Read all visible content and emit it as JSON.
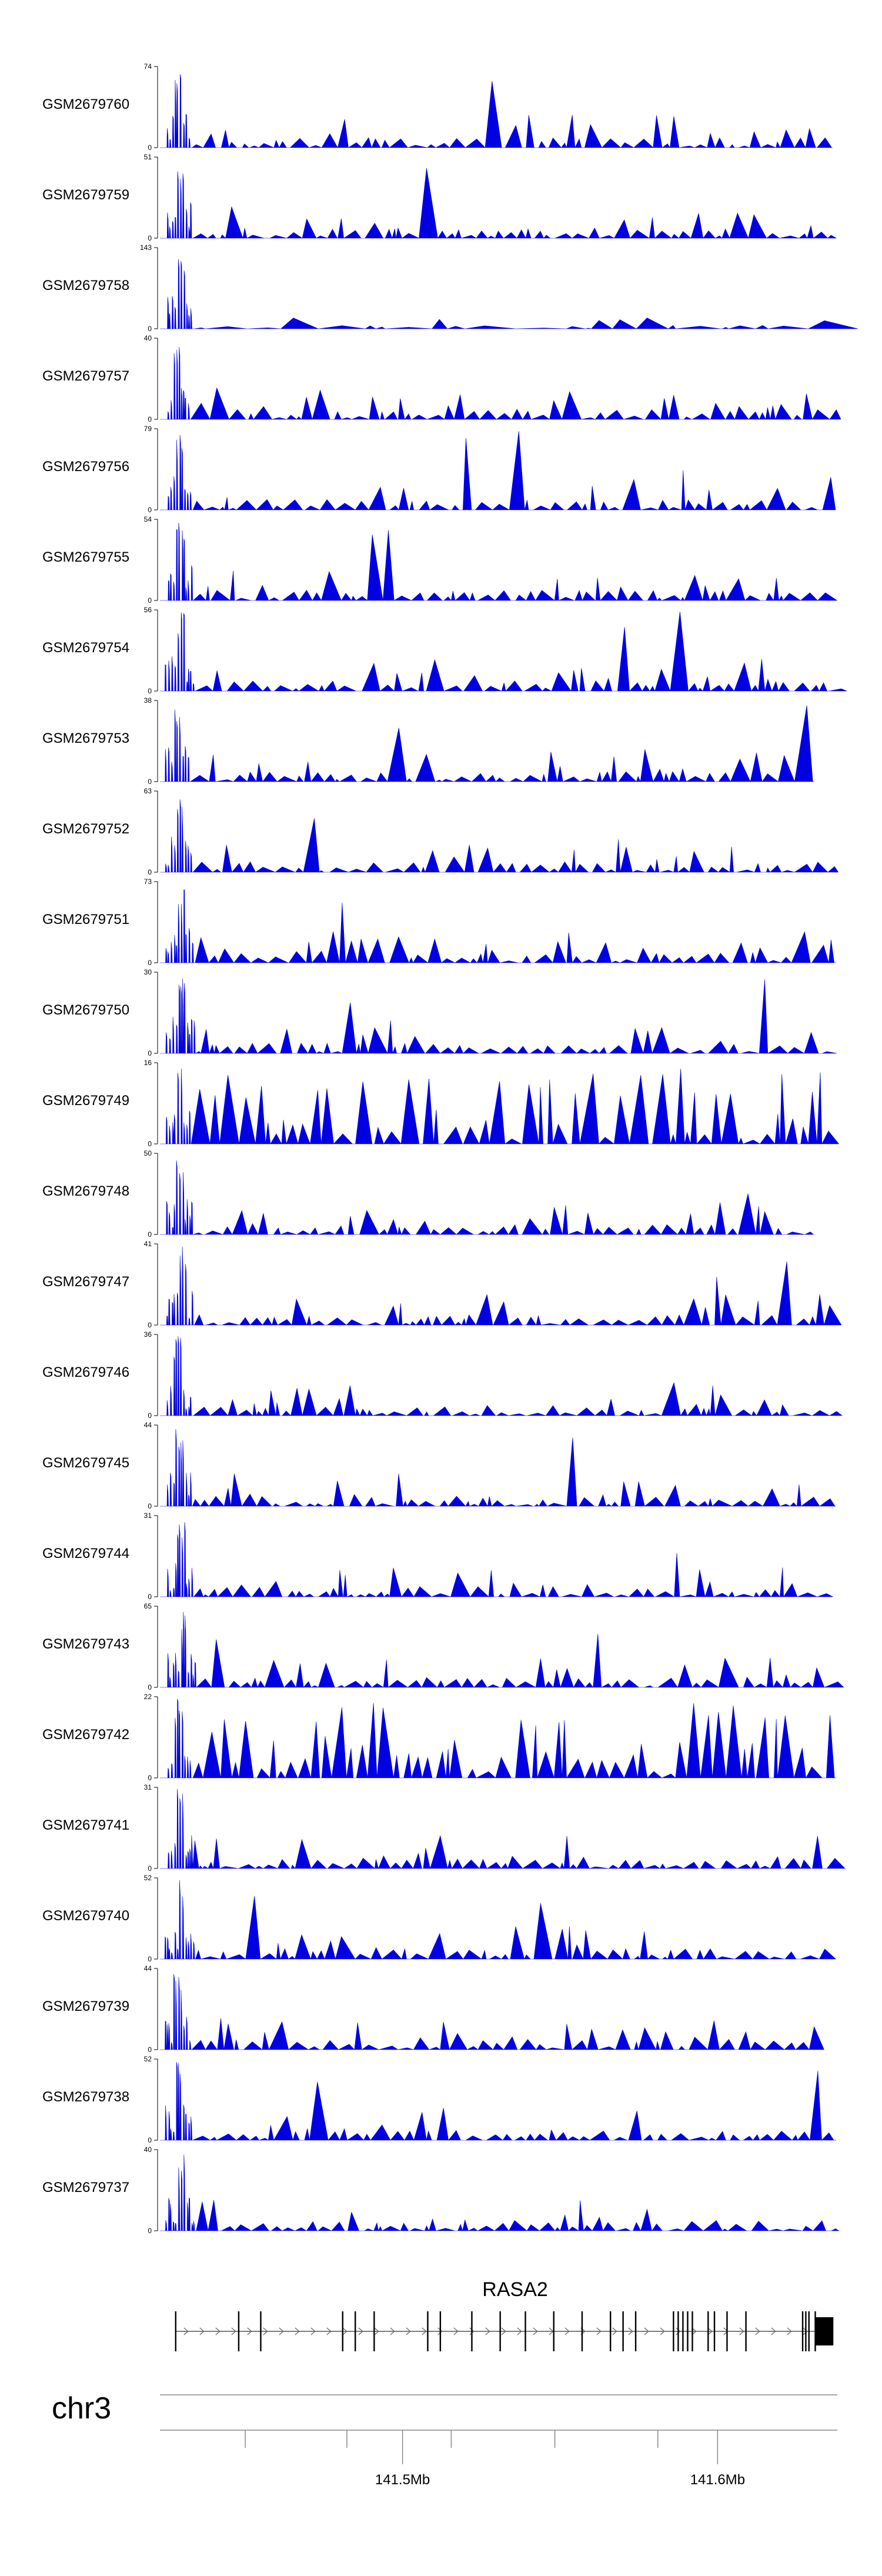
{
  "chart_data": {
    "type": "area",
    "title": "",
    "fill_color": "#0000e0",
    "x_range": [
      141.423,
      141.638
    ],
    "x_units": "Mb",
    "tracks": [
      {
        "name": "GSM2679760",
        "ymax": 74,
        "ymin": 0
      },
      {
        "name": "GSM2679759",
        "ymax": 51,
        "ymin": 0
      },
      {
        "name": "GSM2679758",
        "ymax": 143,
        "ymin": 0
      },
      {
        "name": "GSM2679757",
        "ymax": 40,
        "ymin": 0
      },
      {
        "name": "GSM2679756",
        "ymax": 79,
        "ymin": 0
      },
      {
        "name": "GSM2679755",
        "ymax": 54,
        "ymin": 0
      },
      {
        "name": "GSM2679754",
        "ymax": 56,
        "ymin": 0
      },
      {
        "name": "GSM2679753",
        "ymax": 38,
        "ymin": 0
      },
      {
        "name": "GSM2679752",
        "ymax": 63,
        "ymin": 0
      },
      {
        "name": "GSM2679751",
        "ymax": 73,
        "ymin": 0
      },
      {
        "name": "GSM2679750",
        "ymax": 30,
        "ymin": 0
      },
      {
        "name": "GSM2679749",
        "ymax": 16,
        "ymin": 0
      },
      {
        "name": "GSM2679748",
        "ymax": 50,
        "ymin": 0
      },
      {
        "name": "GSM2679747",
        "ymax": 41,
        "ymin": 0
      },
      {
        "name": "GSM2679746",
        "ymax": 36,
        "ymin": 0
      },
      {
        "name": "GSM2679745",
        "ymax": 44,
        "ymin": 0
      },
      {
        "name": "GSM2679744",
        "ymax": 31,
        "ymin": 0
      },
      {
        "name": "GSM2679743",
        "ymax": 65,
        "ymin": 0
      },
      {
        "name": "GSM2679742",
        "ymax": 22,
        "ymin": 0
      },
      {
        "name": "GSM2679741",
        "ymax": 31,
        "ymin": 0
      },
      {
        "name": "GSM2679740",
        "ymax": 52,
        "ymin": 0
      },
      {
        "name": "GSM2679739",
        "ymax": 44,
        "ymin": 0
      },
      {
        "name": "GSM2679738",
        "ymax": 52,
        "ymin": 0
      },
      {
        "name": "GSM2679737",
        "ymax": 40,
        "ymin": 0
      }
    ],
    "gene": {
      "name": "RASA2",
      "start_mb": 141.428,
      "end_mb": 141.636,
      "strand": "+",
      "exons_mb": [
        141.428,
        141.448,
        141.455,
        141.481,
        141.485,
        141.491,
        141.508,
        141.512,
        141.522,
        141.531,
        141.539,
        141.548,
        141.557,
        141.566,
        141.57,
        141.574,
        141.586,
        141.5875,
        141.589,
        141.5905,
        141.592,
        141.597,
        141.599,
        141.603,
        141.609,
        141.627,
        141.628,
        141.629,
        141.631
      ]
    },
    "chromosome": "chr3",
    "axis": {
      "labeled_ticks": [
        {
          "value": 141.5,
          "label": "141.5Mb"
        },
        {
          "value": 141.6,
          "label": "141.6Mb"
        }
      ],
      "minor_ticks": [
        141.5,
        141.533,
        141.567,
        141.6
      ]
    }
  }
}
